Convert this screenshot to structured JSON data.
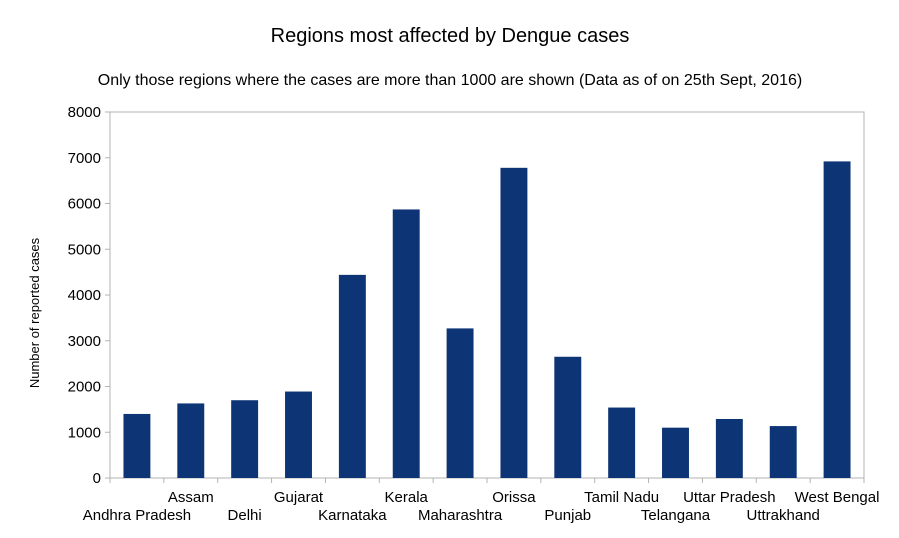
{
  "chart_data": {
    "type": "bar",
    "title": "Regions most affected by Dengue cases",
    "subtitle": "Only those regions where the cases are more than 1000 are shown (Data as of on 25th Sept, 2016)",
    "xlabel": "",
    "ylabel": "Number of reported cases",
    "ylim": [
      0,
      8000
    ],
    "yticks": [
      "0",
      "1000",
      "2000",
      "3000",
      "4000",
      "5000",
      "6000",
      "7000",
      "8000"
    ],
    "grid": false,
    "legend": "none",
    "bar_color": "#0d3474",
    "categories": [
      "Andhra Pradesh",
      "Assam",
      "Delhi",
      "Gujarat",
      "Karnataka",
      "Kerala",
      "Maharashtra",
      "Orissa",
      "Punjab",
      "Tamil Nadu",
      "Telangana",
      "Uttar Pradesh",
      "Uttrakhand",
      "West Bengal"
    ],
    "values": [
      1400,
      1630,
      1700,
      1890,
      4440,
      5870,
      3270,
      6780,
      2650,
      1540,
      1100,
      1290,
      1135,
      6920
    ]
  }
}
